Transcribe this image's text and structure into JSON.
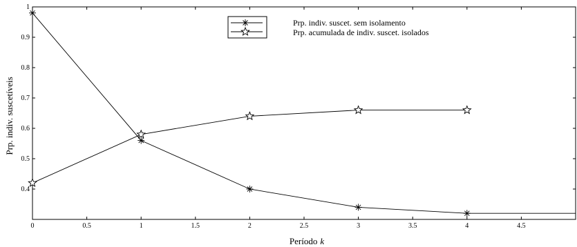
{
  "chart_data": {
    "type": "line",
    "title": "",
    "xlabel": "Período",
    "xlabel_var": "k",
    "ylabel": "Prp. indiv. suscetíveis",
    "xlim": [
      0,
      5
    ],
    "ylim": [
      0.3,
      1
    ],
    "x_ticks": [
      0,
      0.5,
      1,
      1.5,
      2,
      2.5,
      3,
      3.5,
      4,
      4.5
    ],
    "x_tick_labels": [
      "0",
      "0.5",
      "1",
      "1.5",
      "2",
      "2.5",
      "3",
      "3.5",
      "4",
      "4.5"
    ],
    "y_ticks": [
      0.4,
      0.5,
      0.6,
      0.7,
      0.8,
      0.9,
      1
    ],
    "y_tick_labels": [
      "0.4",
      "0.5",
      "0.6",
      "0.7",
      "0.8",
      "0.9",
      "1"
    ],
    "grid": false,
    "legend_position": "top-center",
    "series": [
      {
        "name": "Prp. indiv. suscet. sem isolamento",
        "marker": "asterisk",
        "x": [
          0,
          1,
          2,
          3,
          4,
          5
        ],
        "y": [
          0.98,
          0.56,
          0.4,
          0.34,
          0.32,
          0.32
        ],
        "marker_x": [
          0,
          1,
          2,
          3,
          4
        ],
        "color": "#000000"
      },
      {
        "name": "Prp. acumulada de indiv. suscet. isolados",
        "marker": "star",
        "x": [
          0,
          1,
          2,
          3,
          4
        ],
        "y": [
          0.42,
          0.58,
          0.64,
          0.66,
          0.66
        ],
        "marker_x": [
          0,
          1,
          2,
          3,
          4
        ],
        "color": "#000000"
      }
    ]
  }
}
